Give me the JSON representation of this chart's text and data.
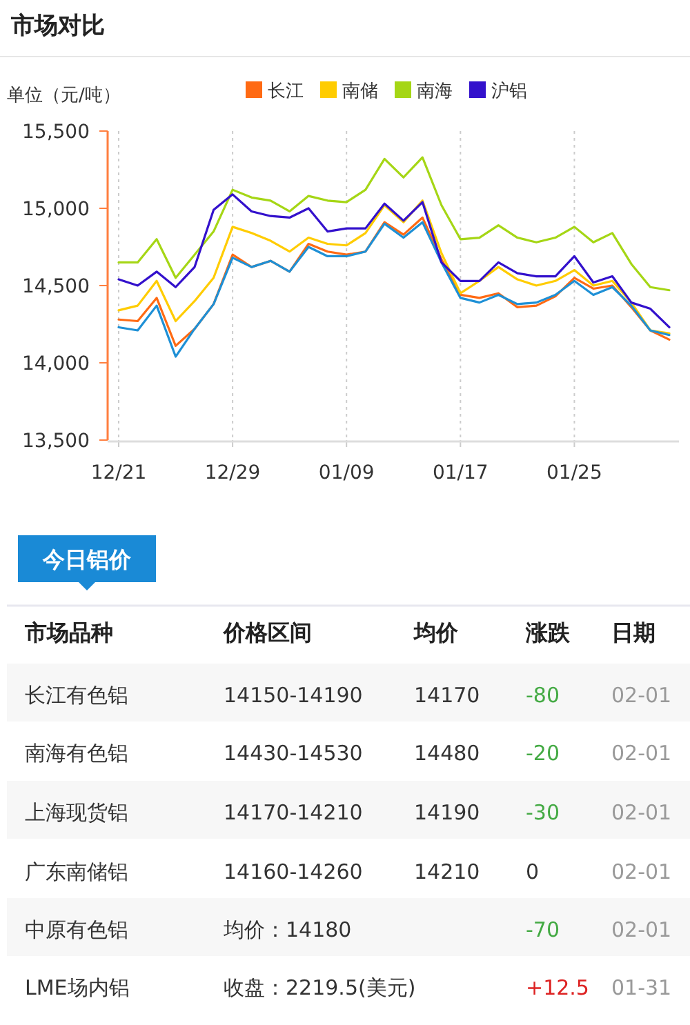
{
  "chart_data": [
    {
      "type": "line",
      "title": "市场对比",
      "ylabel": "单位（元/吨）",
      "legend": "top right",
      "grid": "x",
      "categories": [
        "12/21",
        null,
        null,
        null,
        null,
        null,
        "12/29",
        null,
        null,
        null,
        null,
        null,
        "01/09",
        null,
        null,
        null,
        null,
        null,
        "01/17",
        null,
        null,
        null,
        null,
        null,
        "01/25",
        null,
        null,
        null,
        null,
        null
      ],
      "ylim": [
        13500,
        15500
      ],
      "yticks": [
        {
          "value": 13500,
          "label": "13,500"
        },
        {
          "value": 14000,
          "label": "14,000"
        },
        {
          "value": 14500,
          "label": "14,500"
        },
        {
          "value": 15000,
          "label": "15,000"
        },
        {
          "value": 15500,
          "label": "15,500"
        }
      ],
      "series": [
        {
          "name": "长江",
          "color": "#ff6a13",
          "values": [
            14280,
            14270,
            14420,
            14110,
            14220,
            14380,
            14700,
            14620,
            14660,
            14590,
            14770,
            14720,
            14700,
            14720,
            14910,
            14830,
            14940,
            14670,
            14440,
            14420,
            14450,
            14360,
            14370,
            14430,
            14550,
            14480,
            14500,
            14360,
            14210,
            14150
          ]
        },
        {
          "name": "南储",
          "color": "#ffcc00",
          "values": [
            14340,
            14370,
            14530,
            14270,
            14400,
            14550,
            14880,
            14840,
            14790,
            14720,
            14810,
            14770,
            14760,
            14840,
            15020,
            14910,
            15050,
            14710,
            14450,
            14530,
            14620,
            14540,
            14500,
            14530,
            14600,
            14500,
            14530,
            14390,
            14210,
            14190
          ]
        },
        {
          "name": "南海",
          "color": "#a5d615",
          "values": [
            14650,
            14650,
            14800,
            14550,
            14700,
            14850,
            15120,
            15070,
            15050,
            14980,
            15080,
            15050,
            15040,
            15120,
            15320,
            15200,
            15330,
            15020,
            14800,
            14810,
            14890,
            14810,
            14780,
            14810,
            14880,
            14780,
            14840,
            14640,
            14490,
            14470
          ]
        },
        {
          "name": null,
          "color": "#1e90d6",
          "values": [
            14230,
            14210,
            14370,
            14040,
            14220,
            14380,
            14680,
            14620,
            14660,
            14590,
            14750,
            14690,
            14690,
            14720,
            14900,
            14810,
            14910,
            14650,
            14420,
            14390,
            14440,
            14380,
            14390,
            14440,
            14530,
            14440,
            14490,
            14370,
            14210,
            14180
          ]
        },
        {
          "name": "沪铝",
          "color": "#3311cc",
          "values": [
            14540,
            14500,
            14590,
            14490,
            14620,
            14990,
            15090,
            14980,
            14950,
            14940,
            15000,
            14850,
            14870,
            14870,
            15030,
            14920,
            15040,
            14650,
            14530,
            14530,
            14650,
            14580,
            14560,
            14560,
            14690,
            14520,
            14560,
            14390,
            14350,
            14230
          ]
        }
      ]
    },
    {
      "type": "other",
      "title": "今日铝价",
      "annotations": [
        "市场品种",
        "价格区间",
        "均价",
        "涨跌",
        "日期",
        "长江有色铝",
        "14150-14190",
        "14170",
        "-80",
        "02-01",
        "南海有色铝",
        "14430-14530",
        "14480",
        "-20",
        "02-01",
        "上海现货铝",
        "14170-14210",
        "14190",
        "-30",
        "02-01",
        "广东南储铝",
        "14160-14260",
        "14210",
        "0",
        "02-01",
        "中原有色铝",
        "均价：14180",
        "-70",
        "02-01",
        "LME场内铝",
        "收盘：2219.5(美元)",
        "+12.5",
        "01-31"
      ]
    }
  ]
}
